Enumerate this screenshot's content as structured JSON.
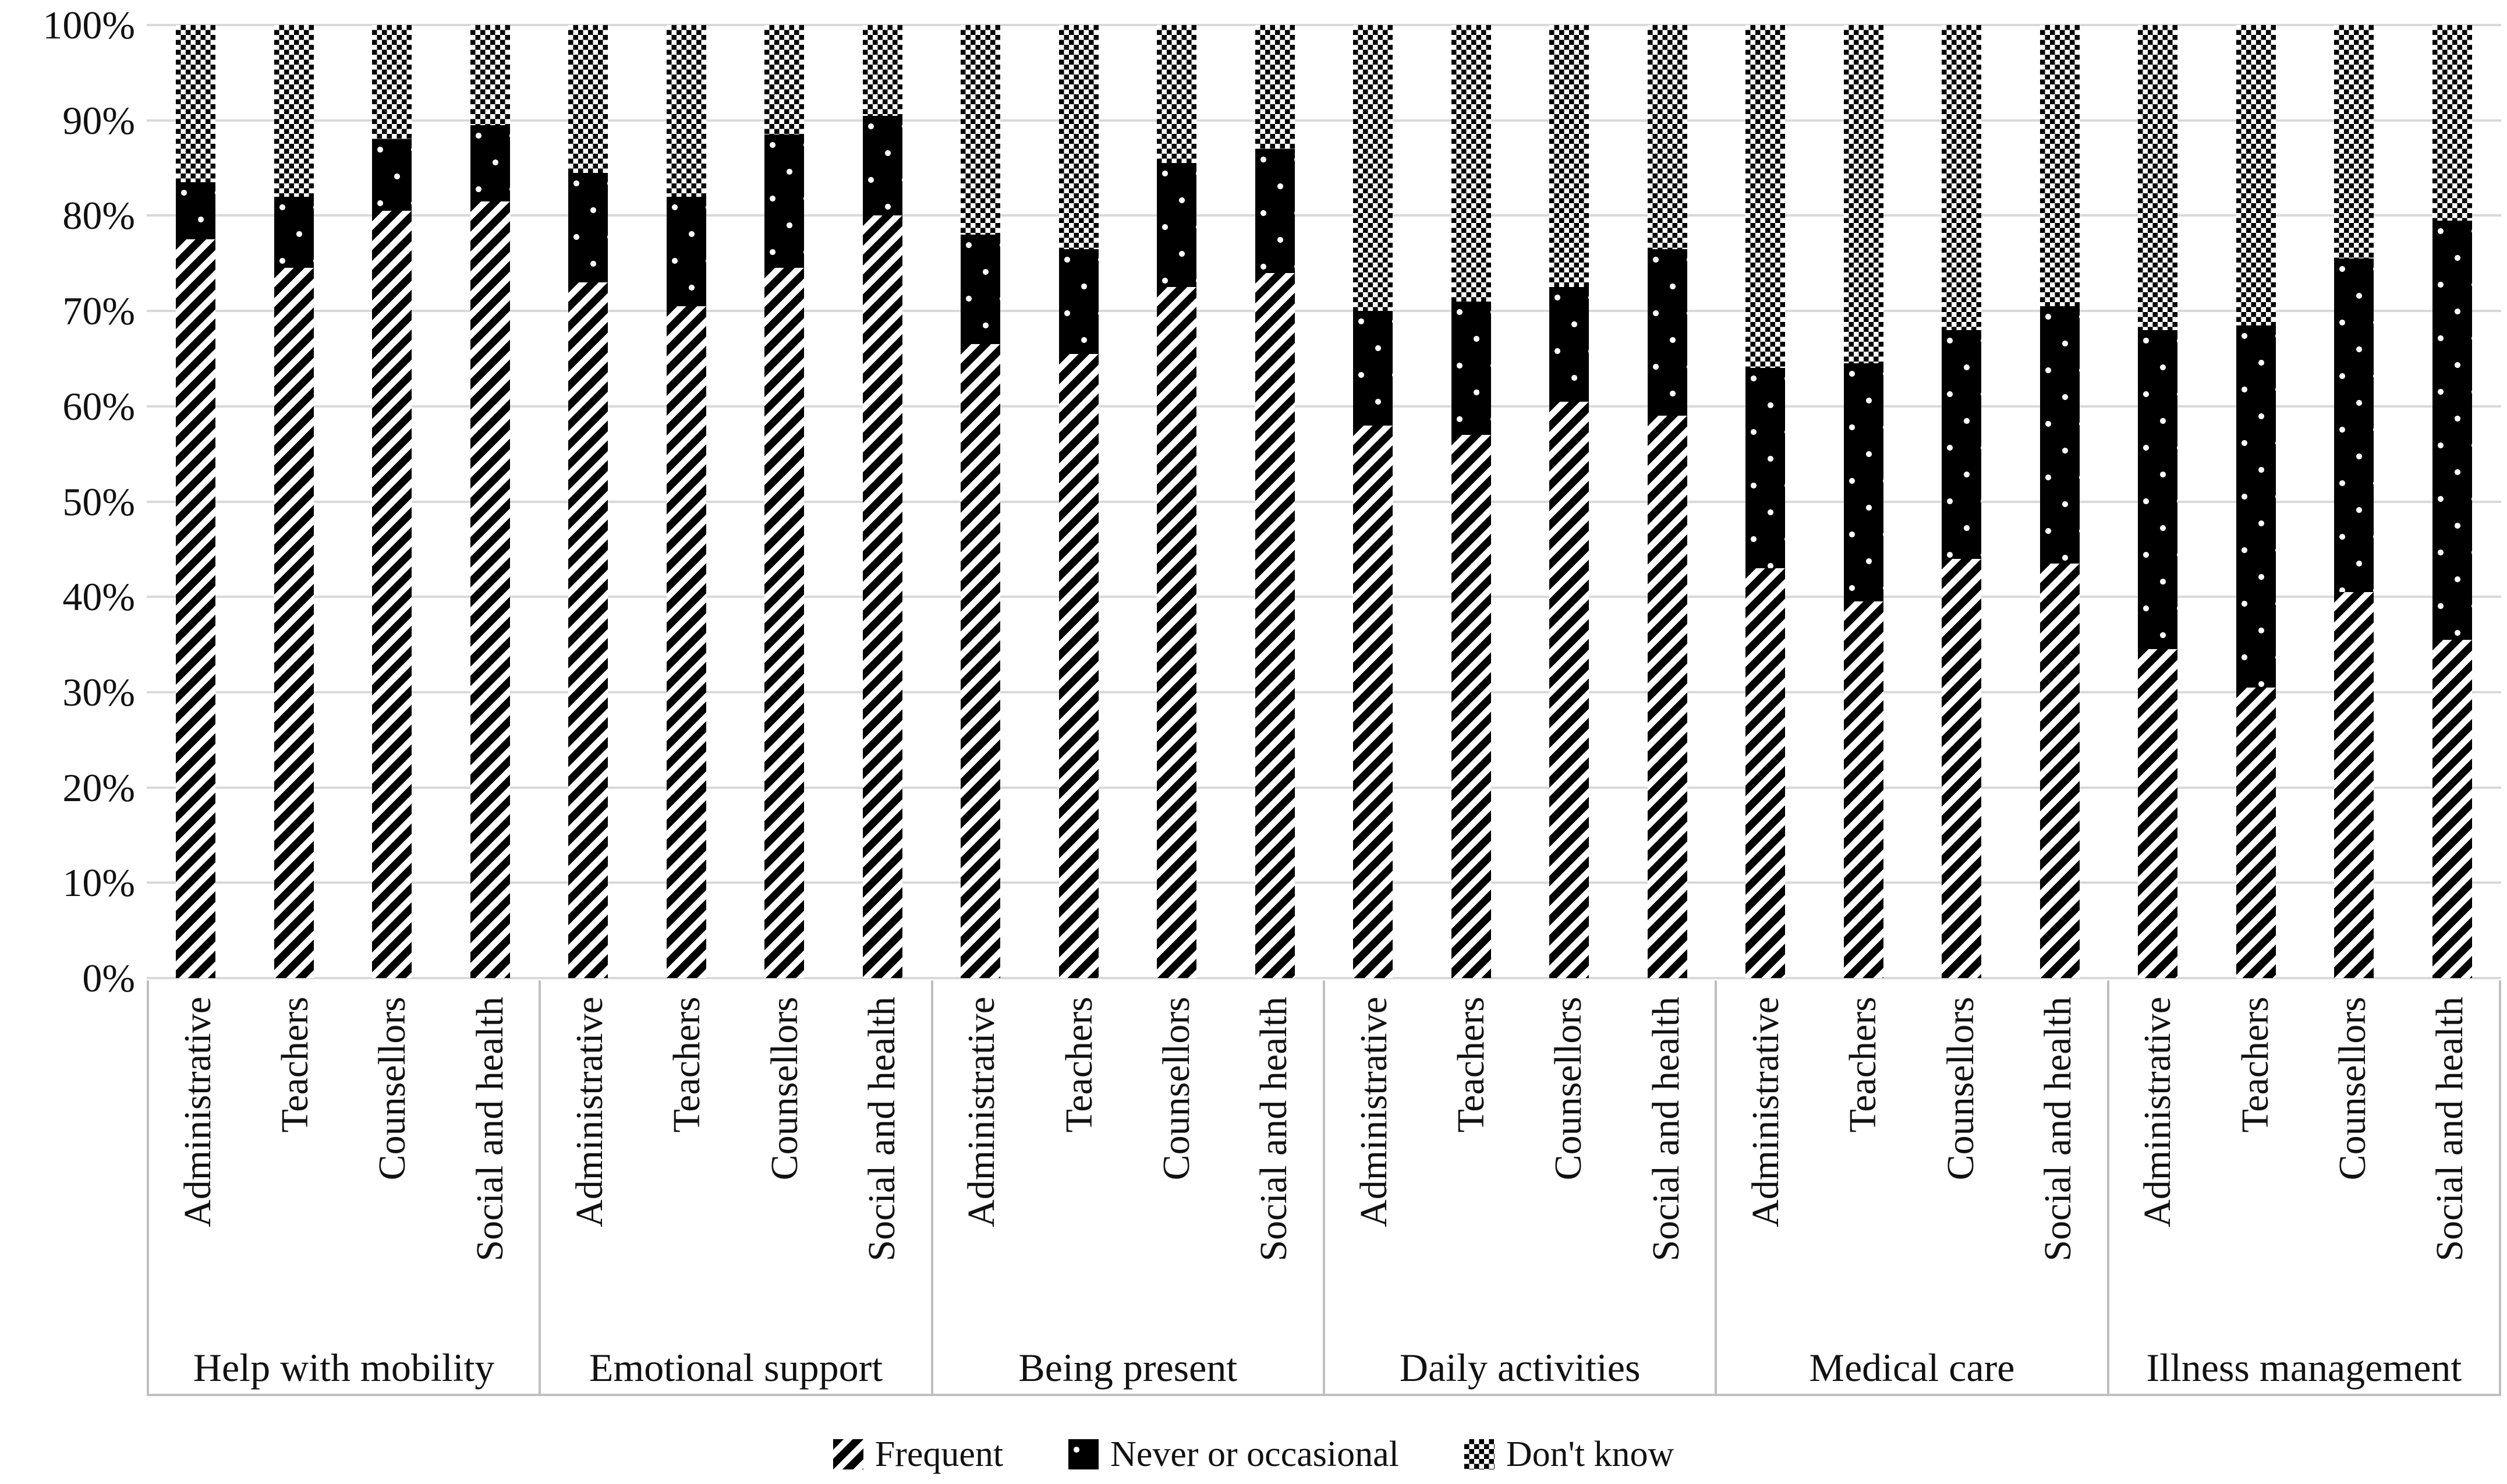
{
  "colors": {
    "series_black": "#000000",
    "pattern_background": "#ffffff",
    "gridline": "#d9d9d9",
    "axis_border": "#bfbfbf",
    "text": "#111111"
  },
  "chart_data": {
    "type": "bar",
    "subtype": "stacked-100-percent",
    "title": "",
    "xlabel": "",
    "ylabel": "",
    "grid": true,
    "legend_position": "bottom-center",
    "y_axis": {
      "min": 0,
      "max": 100,
      "tick_step": 10,
      "ticks": [
        "0%",
        "10%",
        "20%",
        "30%",
        "40%",
        "50%",
        "60%",
        "70%",
        "80%",
        "90%",
        "100%"
      ]
    },
    "legend": [
      {
        "name": "Frequent",
        "pattern": "diagonal-stripes"
      },
      {
        "name": "Never or occasional",
        "pattern": "black-with-white-dots"
      },
      {
        "name": "Don't know",
        "pattern": "checkerboard"
      }
    ],
    "categories": [
      "Administrative",
      "Teachers",
      "Counsellors",
      "Social and health"
    ],
    "groups": [
      {
        "label": "Help with mobility",
        "bars": [
          {
            "category": "Administrative",
            "values": {
              "Frequent": 77.5,
              "Never or occasional": 6.0,
              "Don't know": 16.5
            }
          },
          {
            "category": "Teachers",
            "values": {
              "Frequent": 74.5,
              "Never or occasional": 7.5,
              "Don't know": 18.0
            }
          },
          {
            "category": "Counsellors",
            "values": {
              "Frequent": 80.5,
              "Never or occasional": 7.5,
              "Don't know": 12.0
            }
          },
          {
            "category": "Social and health",
            "values": {
              "Frequent": 81.5,
              "Never or occasional": 8.0,
              "Don't know": 10.5
            }
          }
        ]
      },
      {
        "label": "Emotional support",
        "bars": [
          {
            "category": "Administrative",
            "values": {
              "Frequent": 73.0,
              "Never or occasional": 11.5,
              "Don't know": 15.5
            }
          },
          {
            "category": "Teachers",
            "values": {
              "Frequent": 70.5,
              "Never or occasional": 11.5,
              "Don't know": 18.0
            }
          },
          {
            "category": "Counsellors",
            "values": {
              "Frequent": 74.5,
              "Never or occasional": 14.0,
              "Don't know": 11.5
            }
          },
          {
            "category": "Social and health",
            "values": {
              "Frequent": 80.0,
              "Never or occasional": 10.5,
              "Don't know": 9.5
            }
          }
        ]
      },
      {
        "label": "Being present",
        "bars": [
          {
            "category": "Administrative",
            "values": {
              "Frequent": 66.5,
              "Never or occasional": 11.5,
              "Don't know": 22.0
            }
          },
          {
            "category": "Teachers",
            "values": {
              "Frequent": 65.5,
              "Never or occasional": 11.0,
              "Don't know": 23.5
            }
          },
          {
            "category": "Counsellors",
            "values": {
              "Frequent": 72.5,
              "Never or occasional": 13.0,
              "Don't know": 14.5
            }
          },
          {
            "category": "Social and health",
            "values": {
              "Frequent": 74.0,
              "Never or occasional": 13.0,
              "Don't know": 13.0
            }
          }
        ]
      },
      {
        "label": "Daily activities",
        "bars": [
          {
            "category": "Administrative",
            "values": {
              "Frequent": 58.0,
              "Never or occasional": 12.0,
              "Don't know": 30.0
            }
          },
          {
            "category": "Teachers",
            "values": {
              "Frequent": 57.0,
              "Never or occasional": 14.0,
              "Don't know": 29.0
            }
          },
          {
            "category": "Counsellors",
            "values": {
              "Frequent": 60.5,
              "Never or occasional": 12.0,
              "Don't know": 27.5
            }
          },
          {
            "category": "Social and health",
            "values": {
              "Frequent": 59.0,
              "Never or occasional": 17.5,
              "Don't know": 23.5
            }
          }
        ]
      },
      {
        "label": "Medical care",
        "bars": [
          {
            "category": "Administrative",
            "values": {
              "Frequent": 43.0,
              "Never or occasional": 21.0,
              "Don't know": 36.0
            }
          },
          {
            "category": "Teachers",
            "values": {
              "Frequent": 39.5,
              "Never or occasional": 25.0,
              "Don't know": 35.5
            }
          },
          {
            "category": "Counsellors",
            "values": {
              "Frequent": 44.0,
              "Never or occasional": 24.0,
              "Don't know": 32.0
            }
          },
          {
            "category": "Social and health",
            "values": {
              "Frequent": 43.5,
              "Never or occasional": 27.0,
              "Don't know": 29.5
            }
          }
        ]
      },
      {
        "label": "Illness management",
        "bars": [
          {
            "category": "Administrative",
            "values": {
              "Frequent": 34.5,
              "Never or occasional": 33.5,
              "Don't know": 32.0
            }
          },
          {
            "category": "Teachers",
            "values": {
              "Frequent": 30.5,
              "Never or occasional": 38.0,
              "Don't know": 31.5
            }
          },
          {
            "category": "Counsellors",
            "values": {
              "Frequent": 40.5,
              "Never or occasional": 35.0,
              "Don't know": 24.5
            }
          },
          {
            "category": "Social and health",
            "values": {
              "Frequent": 35.5,
              "Never or occasional": 44.0,
              "Don't know": 20.5
            }
          }
        ]
      }
    ]
  }
}
